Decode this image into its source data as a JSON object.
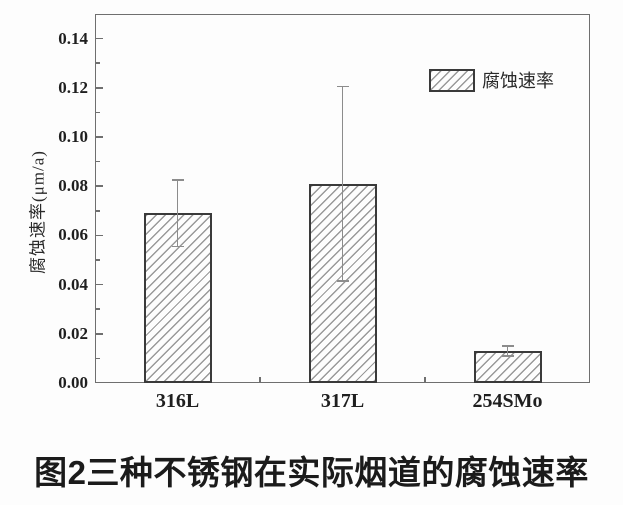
{
  "figure": {
    "caption": "图2三种不锈钢在实际烟道的腐蚀速率"
  },
  "chart_data": {
    "type": "bar",
    "title": "",
    "categories": [
      "316L",
      "317L",
      "254SMo"
    ],
    "values": [
      0.069,
      0.081,
      0.013
    ],
    "errors": [
      0.0135,
      0.0395,
      0.002
    ],
    "xlabel": "",
    "ylabel": "腐蚀速率(μm/a)",
    "ylim": [
      0,
      0.15
    ],
    "yticks": [
      "0.00",
      "0.02",
      "0.04",
      "0.06",
      "0.08",
      "0.10",
      "0.12",
      "0.14"
    ],
    "y_minor_ticks": [
      0.01,
      0.03,
      0.05,
      0.07,
      0.09,
      0.11,
      0.13
    ],
    "grid": false,
    "legend": {
      "label": "腐蚀速率",
      "swatch": "diagonal-hatch",
      "position": "upper-right"
    },
    "colors": {
      "axis": "#6f6f6f",
      "text": "#1f1f1f",
      "bar_fill": "#fdfdfd",
      "bar_border": "#3a3a3a",
      "hatch": "#999999",
      "error_bar": "#8c8c8c",
      "background": "#fdfdfd"
    }
  }
}
